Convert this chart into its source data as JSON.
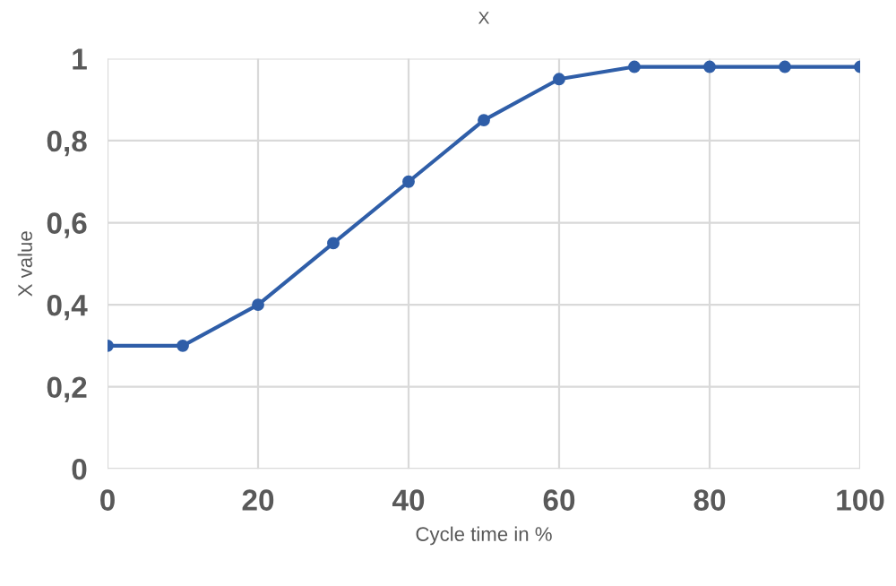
{
  "chart_data": {
    "type": "line",
    "title": "X",
    "xlabel": "Cycle time in %",
    "ylabel": "X value",
    "x": [
      0,
      10,
      20,
      30,
      40,
      50,
      60,
      70,
      80,
      90,
      100
    ],
    "series": [
      {
        "color": "#2f5ea8",
        "values": [
          0.3,
          0.3,
          0.4,
          0.55,
          0.7,
          0.85,
          0.95,
          0.98,
          0.98,
          0.98,
          0.98
        ]
      }
    ],
    "xlim": [
      0,
      100
    ],
    "xticks": [
      0,
      20,
      40,
      60,
      80,
      100
    ],
    "ylim": [
      0,
      1
    ],
    "yticks": [
      0,
      {
        "value": 0.2,
        "label": "0,2"
      },
      {
        "value": 0.4,
        "label": "0,4"
      },
      {
        "value": 0.6,
        "label": "0,6"
      },
      {
        "value": 0.8,
        "label": "0,8"
      },
      1
    ],
    "grid": true,
    "marker": "circle",
    "line_style": "solid"
  }
}
